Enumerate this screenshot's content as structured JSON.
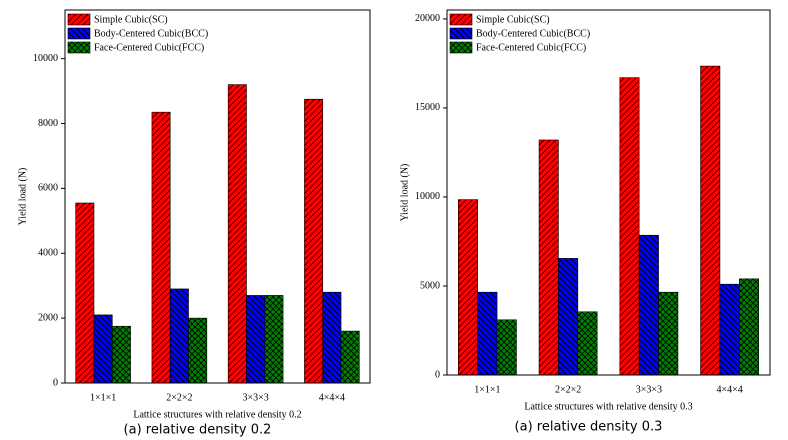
{
  "chart_data": [
    {
      "type": "bar",
      "x_label": "Lattice structures with relative density 0.2",
      "y_label": "Yield load (N)",
      "caption": "(a) relative density 0.2",
      "categories": [
        "1×1×1",
        "2×2×2",
        "3×3×3",
        "4×4×4"
      ],
      "series": [
        {
          "name": "Simple Cubic(SC)",
          "color": "#ff0000",
          "values": [
            5550,
            8350,
            9200,
            8750
          ]
        },
        {
          "name": "Body-Centered Cubic(BCC)",
          "color": "#0000ff",
          "values": [
            2100,
            2900,
            2700,
            2800
          ]
        },
        {
          "name": "Face-Centered Cubic(FCC)",
          "color": "#008000",
          "values": [
            1750,
            2000,
            2700,
            1600
          ]
        }
      ],
      "ylim": [
        0,
        11500
      ],
      "yticks": [
        0,
        2000,
        4000,
        6000,
        8000,
        10000
      ],
      "legend": "upper left"
    },
    {
      "type": "bar",
      "x_label": "Lattice structures with relative density 0.3",
      "y_label": "Yield load (N)",
      "caption": "(a) relative density 0.3",
      "categories": [
        "1×1×1",
        "2×2×2",
        "3×3×3",
        "4×4×4"
      ],
      "series": [
        {
          "name": "Simple Cubic(SC)",
          "color": "#ff0000",
          "values": [
            9850,
            13200,
            16700,
            17350
          ]
        },
        {
          "name": "Body-Centered Cubic(BCC)",
          "color": "#0000ff",
          "values": [
            4650,
            6550,
            7850,
            5100
          ]
        },
        {
          "name": "Face-Centered Cubic(FCC)",
          "color": "#008000",
          "values": [
            3100,
            3550,
            4650,
            5400
          ]
        }
      ],
      "ylim": [
        0,
        20500
      ],
      "yticks": [
        0,
        5000,
        10000,
        15000,
        20000
      ],
      "legend": "upper left"
    }
  ]
}
